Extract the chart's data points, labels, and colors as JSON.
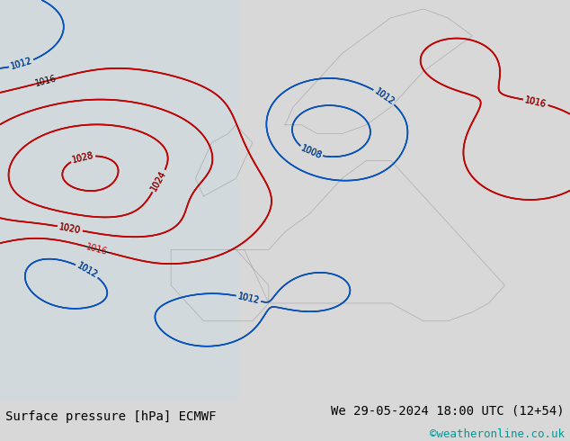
{
  "title_left": "Surface pressure [hPa] ECMWF",
  "title_right": "We 29-05-2024 18:00 UTC (12+54)",
  "copyright": "©weatheronline.co.uk",
  "bg_color": "#c8e6a0",
  "sea_color": "#c8dce8",
  "border_color": "#999999",
  "text_color_black": "#000000",
  "text_color_blue": "#0055cc",
  "text_color_red": "#cc0000",
  "text_color_cyan": "#009999",
  "figsize": [
    6.34,
    4.9
  ],
  "dpi": 100,
  "bottom_bar_color": "#d8d8d8",
  "bottom_bar_height": 0.09,
  "map_bg": "#c8e6a0"
}
